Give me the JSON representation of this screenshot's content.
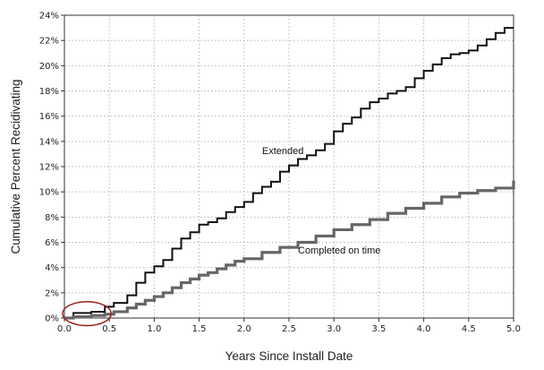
{
  "chart_data": {
    "type": "line",
    "xlabel": "Years Since Install Date",
    "ylabel": "Cumulative Percent Recidivating",
    "xlim": [
      0,
      5
    ],
    "ylim": [
      0,
      24
    ],
    "x_ticks": [
      0,
      0.5,
      1,
      1.5,
      2,
      2.5,
      3,
      3.5,
      4,
      4.5,
      5
    ],
    "x_tick_labels": [
      "0.0",
      "0.5",
      "1.0",
      "1.5",
      "2.0",
      "2.5",
      "3.0",
      "3.5",
      "4.0",
      "4.5",
      "5.0"
    ],
    "y_ticks": [
      0,
      2,
      4,
      6,
      8,
      10,
      12,
      14,
      16,
      18,
      20,
      22,
      24
    ],
    "y_tick_labels": [
      "0%",
      "2%",
      "4%",
      "6%",
      "8%",
      "10%",
      "12%",
      "14%",
      "16%",
      "18%",
      "20%",
      "22%",
      "24%"
    ],
    "grid": "dotted",
    "step": true,
    "series": [
      {
        "name": "Extended",
        "color": "#111111",
        "x": [
          0,
          0.1,
          0.3,
          0.45,
          0.55,
          0.7,
          0.8,
          0.9,
          1.0,
          1.1,
          1.2,
          1.3,
          1.4,
          1.5,
          1.6,
          1.7,
          1.8,
          1.9,
          2.0,
          2.1,
          2.2,
          2.3,
          2.4,
          2.5,
          2.6,
          2.7,
          2.8,
          2.9,
          3.0,
          3.1,
          3.2,
          3.3,
          3.4,
          3.5,
          3.6,
          3.7,
          3.8,
          3.9,
          4.0,
          4.1,
          4.2,
          4.3,
          4.4,
          4.5,
          4.6,
          4.7,
          4.8,
          4.9,
          5.0
        ],
        "y": [
          0,
          0.4,
          0.5,
          0.9,
          1.2,
          1.8,
          2.8,
          3.6,
          4.1,
          4.6,
          5.5,
          6.3,
          6.8,
          7.4,
          7.6,
          7.9,
          8.4,
          8.8,
          9.2,
          9.9,
          10.4,
          10.8,
          11.6,
          12.1,
          12.6,
          12.9,
          13.3,
          13.8,
          14.8,
          15.4,
          15.9,
          16.6,
          17.1,
          17.4,
          17.8,
          18.0,
          18.3,
          19.0,
          19.6,
          20.1,
          20.6,
          20.9,
          21.0,
          21.2,
          21.6,
          22.1,
          22.6,
          23.0,
          23.0
        ]
      },
      {
        "name": "Completed on time",
        "color": "#666666",
        "x": [
          0,
          0.1,
          0.3,
          0.45,
          0.55,
          0.7,
          0.8,
          0.9,
          1.0,
          1.1,
          1.2,
          1.3,
          1.4,
          1.5,
          1.6,
          1.7,
          1.8,
          1.9,
          2.0,
          2.2,
          2.4,
          2.6,
          2.8,
          3.0,
          3.2,
          3.4,
          3.6,
          3.8,
          4.0,
          4.2,
          4.4,
          4.6,
          4.8,
          5.0
        ],
        "y": [
          0,
          0.1,
          0.2,
          0.3,
          0.5,
          0.8,
          1.1,
          1.4,
          1.7,
          2.0,
          2.4,
          2.8,
          3.1,
          3.4,
          3.6,
          3.9,
          4.2,
          4.5,
          4.7,
          5.2,
          5.6,
          6.0,
          6.5,
          7.0,
          7.4,
          7.8,
          8.3,
          8.7,
          9.1,
          9.6,
          9.9,
          10.1,
          10.3,
          10.9
        ]
      }
    ],
    "annotations": [
      {
        "type": "circle",
        "color": "#9a1f1f",
        "cx": 0.25,
        "cy": 0.35,
        "rx": 0.27,
        "ry": 0.95
      }
    ]
  }
}
